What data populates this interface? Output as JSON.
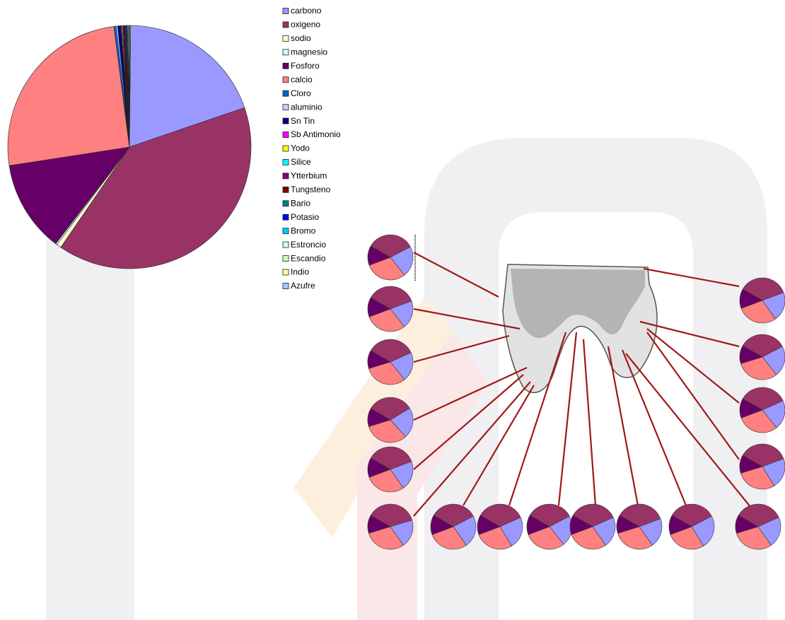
{
  "chart_data": [
    {
      "type": "pie",
      "categories": [
        "carbono",
        "oxigeno",
        "sodio",
        "magnesio",
        "Fosforo",
        "calcio",
        "Cloro",
        "aluminio",
        "Sn Tin",
        "Sb Antimonio",
        "Yodo",
        "Silice",
        "Ytterbium",
        "Tungsteno",
        "Bario",
        "Potasio",
        "Bromo",
        "Estroncio",
        "Escandio",
        "Indio",
        "Azufre"
      ],
      "values": [
        19.6,
        39.8,
        0.6,
        0.2,
        12.2,
        25.4,
        0.3,
        0.2,
        0.4,
        0.1,
        0.1,
        0.1,
        0.1,
        0.2,
        0.1,
        0.1,
        0.1,
        0.1,
        0.1,
        0.1,
        0.1
      ],
      "colors": [
        "#9999ff",
        "#993366",
        "#ffffcc",
        "#ccffff",
        "#660066",
        "#ff8080",
        "#0066cc",
        "#ccccff",
        "#000080",
        "#ff00ff",
        "#ffff00",
        "#00ffff",
        "#800080",
        "#800000",
        "#008080",
        "#0000ff",
        "#00ccff",
        "#ccffff",
        "#ccffcc",
        "#ffff99",
        "#99ccff"
      ]
    },
    {
      "type": "pie",
      "values": [
        34,
        22,
        30,
        14
      ],
      "colors": [
        "#993366",
        "#9999ff",
        "#ff8080",
        "#660066"
      ]
    },
    {
      "type": "pie",
      "values": [
        36,
        20,
        30,
        14
      ],
      "colors": [
        "#993366",
        "#9999ff",
        "#ff8080",
        "#660066"
      ]
    },
    {
      "type": "pie",
      "values": [
        35,
        21,
        31,
        13
      ],
      "colors": [
        "#993366",
        "#9999ff",
        "#ff8080",
        "#660066"
      ]
    },
    {
      "type": "pie",
      "values": [
        33,
        22,
        32,
        13
      ],
      "colors": [
        "#993366",
        "#9999ff",
        "#ff8080",
        "#660066"
      ]
    },
    {
      "type": "pie",
      "values": [
        36,
        21,
        29,
        14
      ],
      "colors": [
        "#993366",
        "#9999ff",
        "#ff8080",
        "#660066"
      ]
    },
    {
      "type": "pie",
      "values": [
        37,
        20,
        30,
        13
      ],
      "colors": [
        "#993366",
        "#9999ff",
        "#ff8080",
        "#660066"
      ]
    },
    {
      "type": "pie",
      "values": [
        34,
        23,
        29,
        14
      ],
      "colors": [
        "#993366",
        "#9999ff",
        "#ff8080",
        "#660066"
      ]
    },
    {
      "type": "pie",
      "values": [
        35,
        23,
        28,
        14
      ],
      "colors": [
        "#993366",
        "#9999ff",
        "#ff8080",
        "#660066"
      ]
    },
    {
      "type": "pie",
      "values": [
        34,
        22,
        30,
        14
      ],
      "colors": [
        "#993366",
        "#9999ff",
        "#ff8080",
        "#660066"
      ]
    },
    {
      "type": "pie",
      "values": [
        35,
        22,
        29,
        14
      ],
      "colors": [
        "#993366",
        "#9999ff",
        "#ff8080",
        "#660066"
      ]
    },
    {
      "type": "pie",
      "values": [
        36,
        21,
        30,
        13
      ],
      "colors": [
        "#993366",
        "#9999ff",
        "#ff8080",
        "#660066"
      ]
    },
    {
      "type": "pie",
      "values": [
        34,
        24,
        28,
        14
      ],
      "colors": [
        "#993366",
        "#9999ff",
        "#ff8080",
        "#660066"
      ]
    },
    {
      "type": "pie",
      "values": [
        35,
        22,
        30,
        13
      ],
      "colors": [
        "#993366",
        "#9999ff",
        "#ff8080",
        "#660066"
      ]
    },
    {
      "type": "pie",
      "values": [
        36,
        21,
        29,
        14
      ],
      "colors": [
        "#993366",
        "#9999ff",
        "#ff8080",
        "#660066"
      ]
    },
    {
      "type": "pie",
      "values": [
        34,
        22,
        31,
        13
      ],
      "colors": [
        "#993366",
        "#9999ff",
        "#ff8080",
        "#660066"
      ]
    },
    {
      "type": "pie",
      "values": [
        35,
        21,
        30,
        14
      ],
      "colors": [
        "#993366",
        "#9999ff",
        "#ff8080",
        "#660066"
      ]
    },
    {
      "type": "pie",
      "values": [
        36,
        22,
        29,
        13
      ],
      "colors": [
        "#993366",
        "#9999ff",
        "#ff8080",
        "#660066"
      ]
    }
  ]
}
